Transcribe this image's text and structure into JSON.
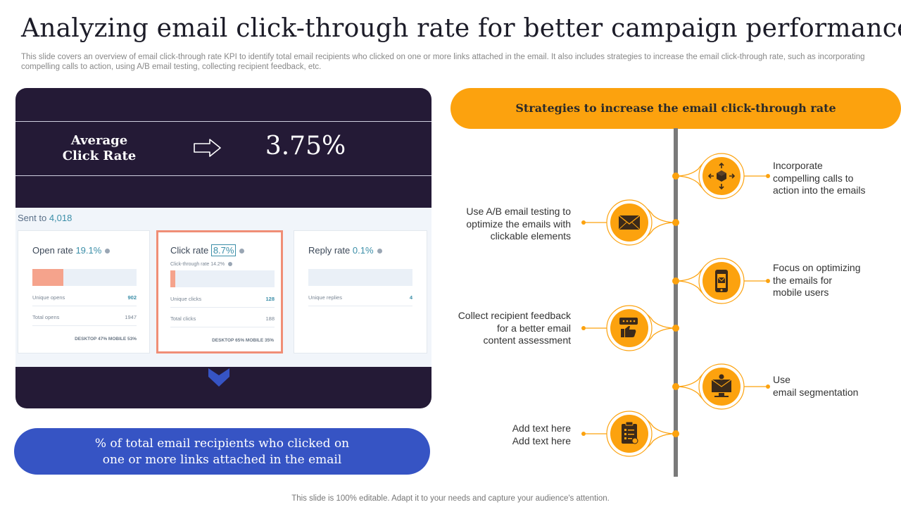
{
  "header": {
    "title": "Analyzing email click-through rate for better campaign performance",
    "subtitle": "This slide covers an overview of email click-through rate KPI to identify total email recipients who clicked on one or more links attached in the email. It also includes strategies to increase the email click-through rate, such as incorporating compelling calls to action, using A/B email testing, collecting recipient feedback, etc."
  },
  "kpi": {
    "label_line1": "Average",
    "label_line2": "Click Rate",
    "value": "3.75%"
  },
  "screenshot": {
    "sent_label": "Sent to",
    "sent_value": "4,018",
    "cards": [
      {
        "title": "Open rate",
        "pct": "19.1%",
        "fill": 0.3,
        "rows": [
          {
            "label": "Unique opens",
            "value": "902"
          },
          {
            "label": "Total opens",
            "value": "1947"
          }
        ],
        "devices": "DESKTOP 47%   MOBILE 53%"
      },
      {
        "title": "Click rate",
        "pct": "8.7%",
        "sub": "Click-through rate 14.2%",
        "fill": 0.05,
        "rows": [
          {
            "label": "Unique clicks",
            "value": "128"
          },
          {
            "label": "Total clicks",
            "value": "188"
          }
        ],
        "devices": "DESKTOP 65%   MOBILE 35%"
      },
      {
        "title": "Reply rate",
        "pct": "0.1%",
        "fill": 0,
        "rows": [
          {
            "label": "Unique replies",
            "value": "4"
          }
        ]
      }
    ]
  },
  "definition": {
    "line1": "% of total email recipients who clicked on",
    "line2": "one or more links attached in the email"
  },
  "strategies": {
    "heading": "Strategies to increase the email click-through rate",
    "items": [
      {
        "side": "right",
        "icon": "cube-arrows-icon",
        "lines": [
          "Incorporate",
          "compelling calls to",
          "action into the emails"
        ]
      },
      {
        "side": "left",
        "icon": "envelope-icon",
        "lines": [
          "Use A/B email testing to",
          "optimize the emails with",
          "clickable elements"
        ]
      },
      {
        "side": "right",
        "icon": "mobile-email-icon",
        "lines": [
          "Focus on optimizing",
          "the emails for",
          "mobile users"
        ]
      },
      {
        "side": "left",
        "icon": "feedback-thumbs-up-icon",
        "lines": [
          "Collect recipient feedback",
          "for a better email",
          "content assessment"
        ]
      },
      {
        "side": "right",
        "icon": "email-segmentation-icon",
        "lines": [
          "Use",
          "email segmentation"
        ]
      },
      {
        "side": "left",
        "icon": "clipboard-icon",
        "lines": [
          "Add text here",
          "Add text here"
        ]
      }
    ]
  },
  "colors": {
    "dark_panel": "#241a36",
    "accent_orange": "#fca20e",
    "accent_blue": "#3654c4"
  },
  "footer": "This slide is 100% editable. Adapt it to your needs and capture your audience's attention."
}
